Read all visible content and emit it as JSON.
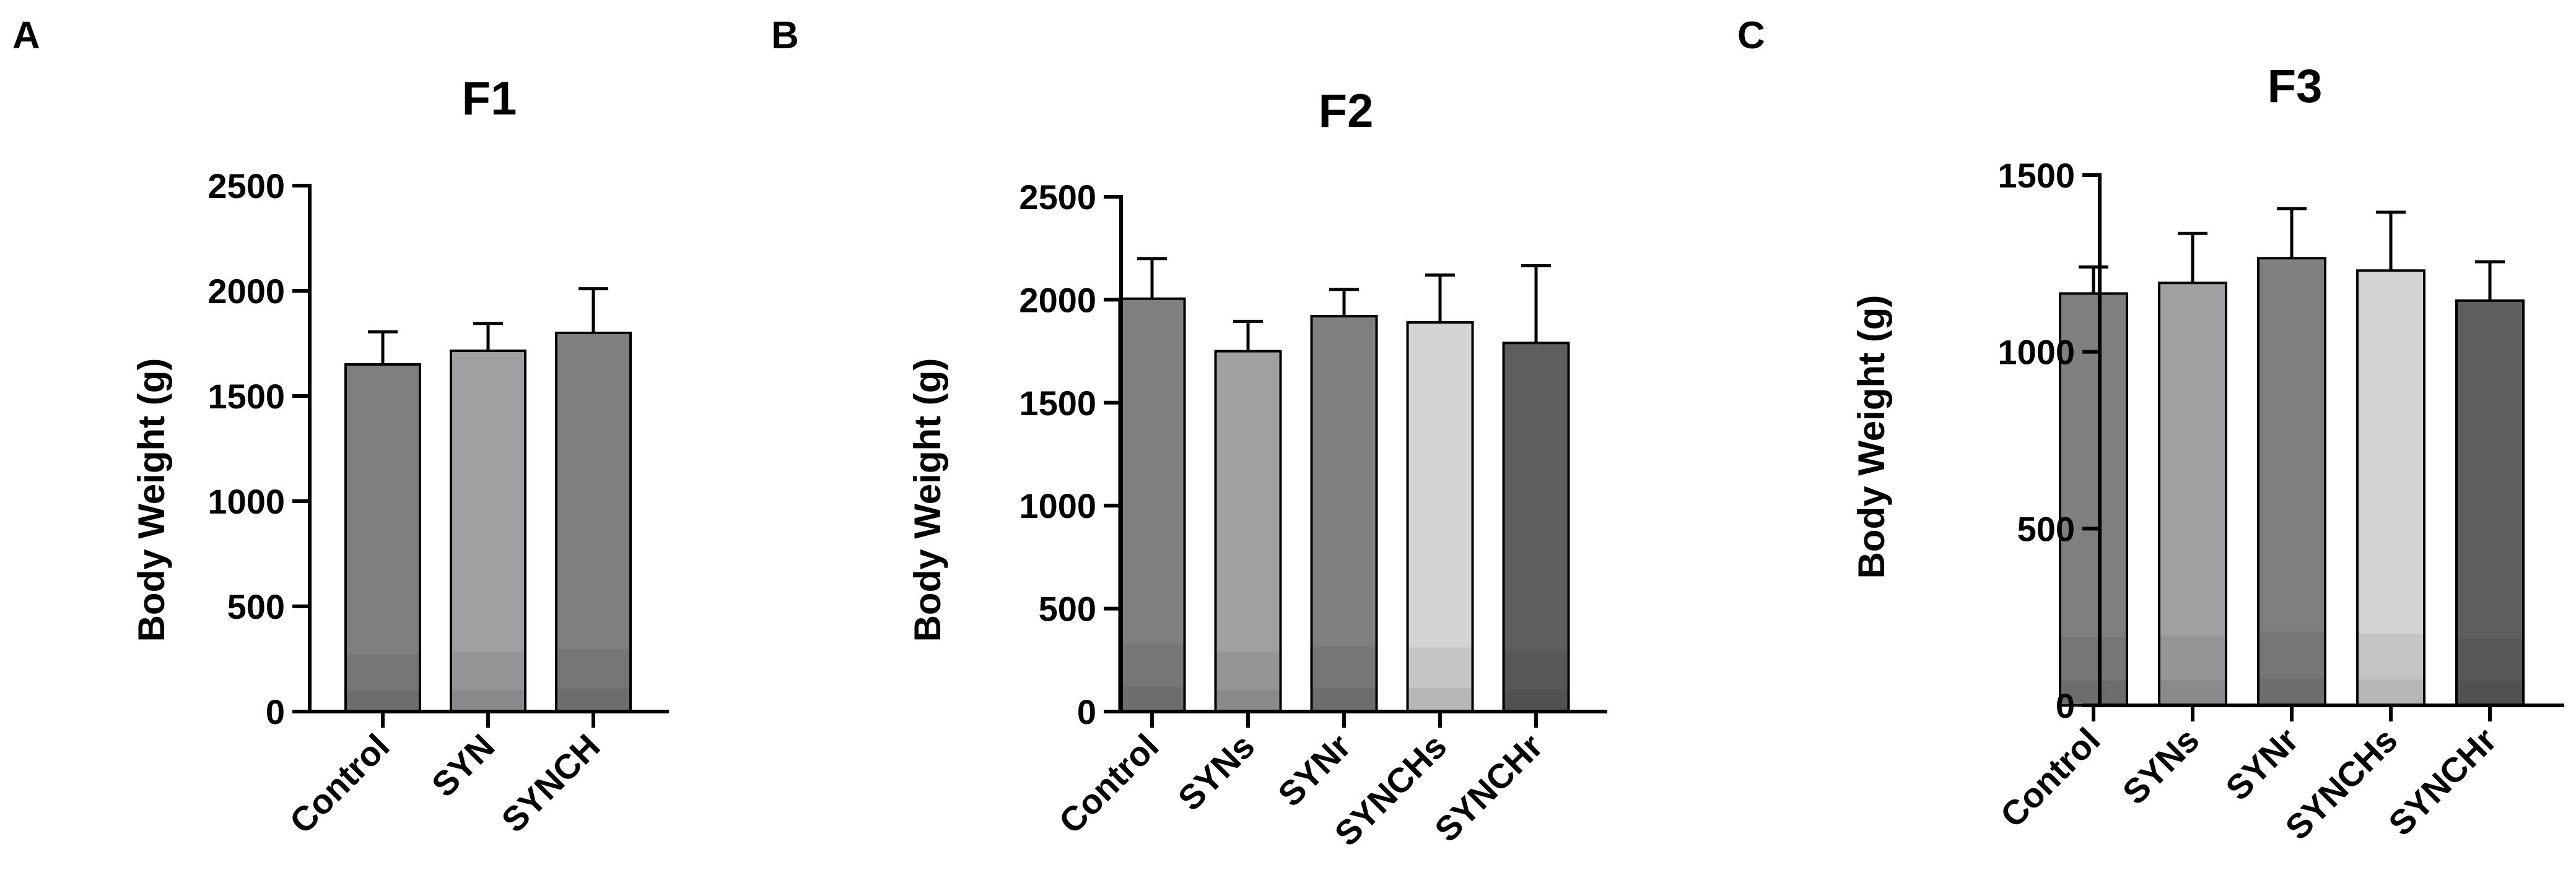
{
  "panels": [
    {
      "label": "A"
    },
    {
      "label": "B"
    },
    {
      "label": "C"
    }
  ],
  "chart_data": [
    {
      "type": "bar",
      "title": "F1",
      "xlabel": "",
      "ylabel": "Body Weight (g)",
      "ylim": [
        0,
        2500
      ],
      "yticks": [
        0,
        500,
        1000,
        1500,
        2000,
        2500
      ],
      "categories": [
        "Control",
        "SYN",
        "SYNCH"
      ],
      "values": [
        1650,
        1715,
        1800
      ],
      "errors": [
        155,
        130,
        210
      ],
      "colors": [
        "#7f7f7f",
        "#a0a0a3",
        "#7f7f7f"
      ]
    },
    {
      "type": "bar",
      "title": "F2",
      "xlabel": "",
      "ylabel": "Body Weight (g)",
      "ylim": [
        0,
        2500
      ],
      "yticks": [
        0,
        500,
        1000,
        1500,
        2000,
        2500
      ],
      "categories": [
        "Control",
        "SYNs",
        "SYNr",
        "SYNCHs",
        "SYNCHr"
      ],
      "values": [
        2005,
        1750,
        1920,
        1890,
        1790
      ],
      "errors": [
        195,
        145,
        130,
        230,
        375
      ],
      "colors": [
        "#7f7f7f",
        "#a0a0a3",
        "#7f7f7f",
        "#d4d4d4",
        "#5e5e5e"
      ]
    },
    {
      "type": "bar",
      "title": "F3",
      "xlabel": "",
      "ylabel": "Body Weight (g)",
      "ylim": [
        0,
        1500
      ],
      "yticks": [
        0,
        500,
        1000,
        1500
      ],
      "categories": [
        "Control",
        "SYNs",
        "SYNr",
        "SYNCHs",
        "SYNCHr"
      ],
      "values": [
        1165,
        1195,
        1265,
        1230,
        1145
      ],
      "errors": [
        75,
        140,
        140,
        165,
        110
      ],
      "colors": [
        "#7f7f7f",
        "#a0a0a3",
        "#7f7f7f",
        "#d4d4d4",
        "#5e5e5e"
      ]
    }
  ]
}
